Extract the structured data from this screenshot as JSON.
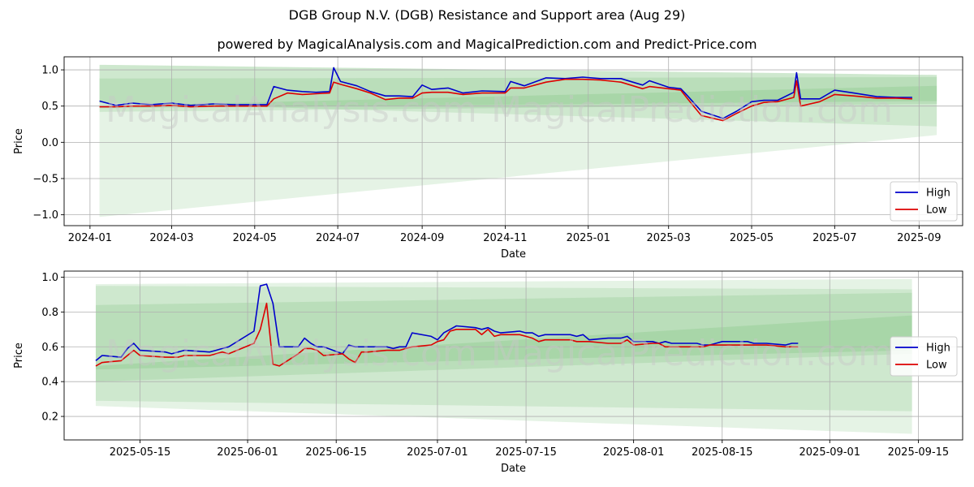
{
  "header": {
    "title": "DGB Group N.V. (DGB) Resistance and Support area (Aug 29)",
    "subtitle": "powered by MagicalAnalysis.com and MagicalPrediction.com and Predict-Price.com"
  },
  "watermarks": [
    "MagicalAnalysis.com",
    "MagicalPrediction.com"
  ],
  "colors": {
    "high": "#0000cc",
    "low": "#dd0000",
    "band": "#2ca02c"
  },
  "chart_data": [
    {
      "type": "line",
      "xlabel": "Date",
      "ylabel": "Price",
      "xlim": [
        "2023-12-13",
        "2025-10-03"
      ],
      "ylim": [
        -1.15,
        1.18
      ],
      "x_ticks": [
        "2024-01-01",
        "2024-03-01",
        "2024-05-01",
        "2024-07-01",
        "2024-09-01",
        "2024-11-01",
        "2025-01-01",
        "2025-03-01",
        "2025-05-01",
        "2025-07-01",
        "2025-09-01"
      ],
      "x_tick_labels": [
        "2024-01",
        "2024-03",
        "2024-05",
        "2024-07",
        "2024-09",
        "2024-11",
        "2025-01",
        "2025-03",
        "2025-05",
        "2025-07",
        "2025-09"
      ],
      "y_ticks": [
        -1.0,
        -0.5,
        0.0,
        0.5,
        1.0
      ],
      "y_tick_labels": [
        "−1.0",
        "−0.5",
        "0.0",
        "0.5",
        "1.0"
      ],
      "grid": true,
      "legend": "bottom-right",
      "bands": [
        {
          "x": [
            "2024-01-08",
            "2025-09-14"
          ],
          "upper": [
            1.07,
            0.93
          ],
          "lower": [
            -1.03,
            0.1
          ]
        },
        {
          "x": [
            "2024-01-08",
            "2025-09-14"
          ],
          "upper": [
            1.07,
            0.93
          ],
          "lower": [
            0.55,
            0.22
          ]
        },
        {
          "x": [
            "2024-01-08",
            "2025-09-14"
          ],
          "upper": [
            0.88,
            0.9
          ],
          "lower": [
            0.42,
            0.53
          ]
        },
        {
          "x": [
            "2024-01-08",
            "2025-09-14"
          ],
          "upper": [
            0.5,
            0.78
          ],
          "lower": [
            0.47,
            0.57
          ]
        }
      ],
      "series": [
        {
          "name": "High",
          "x": [
            "2024-01-08",
            "2024-01-20",
            "2024-02-01",
            "2024-02-15",
            "2024-03-01",
            "2024-03-15",
            "2024-04-01",
            "2024-04-15",
            "2024-05-01",
            "2024-05-10",
            "2024-05-15",
            "2024-05-25",
            "2024-06-05",
            "2024-06-15",
            "2024-06-25",
            "2024-06-28",
            "2024-07-03",
            "2024-07-15",
            "2024-07-25",
            "2024-08-05",
            "2024-08-15",
            "2024-08-25",
            "2024-09-01",
            "2024-09-08",
            "2024-09-20",
            "2024-10-01",
            "2024-10-15",
            "2024-11-01",
            "2024-11-05",
            "2024-11-15",
            "2024-12-01",
            "2024-12-15",
            "2024-12-28",
            "2025-01-10",
            "2025-01-25",
            "2025-02-10",
            "2025-02-15",
            "2025-03-01",
            "2025-03-10",
            "2025-03-15",
            "2025-03-25",
            "2025-04-10",
            "2025-04-20",
            "2025-05-01",
            "2025-05-10",
            "2025-05-20",
            "2025-06-01",
            "2025-06-03",
            "2025-06-06",
            "2025-06-20",
            "2025-07-01",
            "2025-07-15",
            "2025-08-01",
            "2025-08-15",
            "2025-08-27"
          ],
          "values": [
            0.57,
            0.51,
            0.54,
            0.52,
            0.54,
            0.51,
            0.53,
            0.52,
            0.52,
            0.52,
            0.77,
            0.72,
            0.7,
            0.69,
            0.7,
            1.03,
            0.84,
            0.78,
            0.7,
            0.64,
            0.64,
            0.63,
            0.79,
            0.73,
            0.75,
            0.68,
            0.71,
            0.7,
            0.84,
            0.78,
            0.89,
            0.88,
            0.9,
            0.88,
            0.88,
            0.79,
            0.85,
            0.76,
            0.74,
            0.64,
            0.43,
            0.33,
            0.43,
            0.56,
            0.58,
            0.58,
            0.69,
            0.96,
            0.6,
            0.6,
            0.72,
            0.68,
            0.63,
            0.62,
            0.62
          ]
        },
        {
          "name": "Low",
          "x": [
            "2024-01-08",
            "2024-01-20",
            "2024-02-01",
            "2024-02-15",
            "2024-03-01",
            "2024-03-15",
            "2024-04-01",
            "2024-04-15",
            "2024-05-01",
            "2024-05-10",
            "2024-05-15",
            "2024-05-25",
            "2024-06-05",
            "2024-06-15",
            "2024-06-25",
            "2024-06-28",
            "2024-07-03",
            "2024-07-15",
            "2024-07-25",
            "2024-08-05",
            "2024-08-15",
            "2024-08-25",
            "2024-09-01",
            "2024-09-08",
            "2024-09-20",
            "2024-10-01",
            "2024-10-15",
            "2024-11-01",
            "2024-11-05",
            "2024-11-15",
            "2024-12-01",
            "2024-12-15",
            "2024-12-28",
            "2025-01-10",
            "2025-01-25",
            "2025-02-10",
            "2025-02-15",
            "2025-03-01",
            "2025-03-10",
            "2025-03-15",
            "2025-03-25",
            "2025-04-10",
            "2025-04-20",
            "2025-05-01",
            "2025-05-10",
            "2025-05-20",
            "2025-06-01",
            "2025-06-03",
            "2025-06-06",
            "2025-06-20",
            "2025-07-01",
            "2025-07-15",
            "2025-08-01",
            "2025-08-15",
            "2025-08-27"
          ],
          "values": [
            0.49,
            0.49,
            0.5,
            0.5,
            0.51,
            0.49,
            0.5,
            0.5,
            0.5,
            0.5,
            0.6,
            0.68,
            0.66,
            0.67,
            0.68,
            0.83,
            0.8,
            0.74,
            0.68,
            0.59,
            0.61,
            0.61,
            0.68,
            0.69,
            0.69,
            0.66,
            0.68,
            0.68,
            0.75,
            0.75,
            0.83,
            0.87,
            0.87,
            0.86,
            0.83,
            0.74,
            0.77,
            0.74,
            0.72,
            0.6,
            0.37,
            0.3,
            0.4,
            0.5,
            0.55,
            0.56,
            0.62,
            0.85,
            0.5,
            0.56,
            0.66,
            0.64,
            0.61,
            0.61,
            0.6
          ]
        }
      ]
    },
    {
      "type": "line",
      "xlabel": "Date",
      "ylabel": "Price",
      "xlim": [
        "2025-05-03",
        "2025-09-22"
      ],
      "ylim": [
        0.065,
        1.035
      ],
      "x_ticks": [
        "2025-05-15",
        "2025-06-01",
        "2025-06-15",
        "2025-07-01",
        "2025-07-15",
        "2025-08-01",
        "2025-08-15",
        "2025-09-01",
        "2025-09-15"
      ],
      "x_tick_labels": [
        "2025-05-15",
        "2025-06-01",
        "2025-06-15",
        "2025-07-01",
        "2025-07-15",
        "2025-08-01",
        "2025-08-15",
        "2025-09-01",
        "2025-09-15"
      ],
      "y_ticks": [
        0.2,
        0.4,
        0.6,
        0.8,
        1.0
      ],
      "y_tick_labels": [
        "0.2",
        "0.4",
        "0.6",
        "0.8",
        "1.0"
      ],
      "grid": true,
      "legend": "center-right",
      "bands": [
        {
          "x": [
            "2025-05-08",
            "2025-09-14"
          ],
          "upper": [
            0.96,
            0.99
          ],
          "lower": [
            0.26,
            0.1
          ]
        },
        {
          "x": [
            "2025-05-08",
            "2025-09-14"
          ],
          "upper": [
            0.95,
            0.93
          ],
          "lower": [
            0.29,
            0.23
          ]
        },
        {
          "x": [
            "2025-05-08",
            "2025-09-14"
          ],
          "upper": [
            0.84,
            0.91
          ],
          "lower": [
            0.4,
            0.56
          ]
        },
        {
          "x": [
            "2025-05-08",
            "2025-09-14"
          ],
          "upper": [
            0.49,
            0.78
          ],
          "lower": [
            0.47,
            0.58
          ]
        }
      ],
      "series": [
        {
          "name": "High",
          "x": [
            "2025-05-08",
            "2025-05-09",
            "2025-05-12",
            "2025-05-13",
            "2025-05-14",
            "2025-05-15",
            "2025-05-19",
            "2025-05-20",
            "2025-05-21",
            "2025-05-22",
            "2025-05-26",
            "2025-05-27",
            "2025-05-28",
            "2025-05-29",
            "2025-06-02",
            "2025-06-03",
            "2025-06-04",
            "2025-06-05",
            "2025-06-06",
            "2025-06-09",
            "2025-06-10",
            "2025-06-11",
            "2025-06-12",
            "2025-06-13",
            "2025-06-16",
            "2025-06-17",
            "2025-06-18",
            "2025-06-19",
            "2025-06-20",
            "2025-06-23",
            "2025-06-24",
            "2025-06-25",
            "2025-06-26",
            "2025-06-27",
            "2025-06-30",
            "2025-07-01",
            "2025-07-02",
            "2025-07-03",
            "2025-07-04",
            "2025-07-07",
            "2025-07-08",
            "2025-07-09",
            "2025-07-10",
            "2025-07-11",
            "2025-07-14",
            "2025-07-15",
            "2025-07-16",
            "2025-07-17",
            "2025-07-18",
            "2025-07-21",
            "2025-07-22",
            "2025-07-23",
            "2025-07-24",
            "2025-07-25",
            "2025-07-28",
            "2025-07-29",
            "2025-07-30",
            "2025-07-31",
            "2025-08-01",
            "2025-08-04",
            "2025-08-05",
            "2025-08-06",
            "2025-08-07",
            "2025-08-08",
            "2025-08-11",
            "2025-08-12",
            "2025-08-13",
            "2025-08-14",
            "2025-08-15",
            "2025-08-18",
            "2025-08-19",
            "2025-08-20",
            "2025-08-21",
            "2025-08-22",
            "2025-08-25",
            "2025-08-26",
            "2025-08-27"
          ],
          "values": [
            0.52,
            0.55,
            0.54,
            0.59,
            0.62,
            0.58,
            0.57,
            0.56,
            0.57,
            0.58,
            0.57,
            0.58,
            0.59,
            0.6,
            0.69,
            0.95,
            0.96,
            0.85,
            0.6,
            0.6,
            0.65,
            0.62,
            0.6,
            0.6,
            0.56,
            0.61,
            0.6,
            0.6,
            0.6,
            0.6,
            0.59,
            0.6,
            0.6,
            0.68,
            0.66,
            0.64,
            0.68,
            0.7,
            0.72,
            0.71,
            0.7,
            0.71,
            0.69,
            0.68,
            0.69,
            0.68,
            0.68,
            0.66,
            0.67,
            0.67,
            0.67,
            0.66,
            0.67,
            0.64,
            0.65,
            0.65,
            0.65,
            0.66,
            0.63,
            0.63,
            0.62,
            0.63,
            0.62,
            0.62,
            0.62,
            0.61,
            0.61,
            0.62,
            0.63,
            0.63,
            0.63,
            0.62,
            0.62,
            0.62,
            0.61,
            0.62,
            0.62
          ]
        },
        {
          "name": "Low",
          "x": [
            "2025-05-08",
            "2025-05-09",
            "2025-05-12",
            "2025-05-13",
            "2025-05-14",
            "2025-05-15",
            "2025-05-19",
            "2025-05-20",
            "2025-05-21",
            "2025-05-22",
            "2025-05-26",
            "2025-05-27",
            "2025-05-28",
            "2025-05-29",
            "2025-06-02",
            "2025-06-03",
            "2025-06-04",
            "2025-06-05",
            "2025-06-06",
            "2025-06-09",
            "2025-06-10",
            "2025-06-11",
            "2025-06-12",
            "2025-06-13",
            "2025-06-16",
            "2025-06-17",
            "2025-06-18",
            "2025-06-19",
            "2025-06-20",
            "2025-06-23",
            "2025-06-24",
            "2025-06-25",
            "2025-06-26",
            "2025-06-27",
            "2025-06-30",
            "2025-07-01",
            "2025-07-02",
            "2025-07-03",
            "2025-07-04",
            "2025-07-07",
            "2025-07-08",
            "2025-07-09",
            "2025-07-10",
            "2025-07-11",
            "2025-07-14",
            "2025-07-15",
            "2025-07-16",
            "2025-07-17",
            "2025-07-18",
            "2025-07-21",
            "2025-07-22",
            "2025-07-23",
            "2025-07-24",
            "2025-07-25",
            "2025-07-28",
            "2025-07-29",
            "2025-07-30",
            "2025-07-31",
            "2025-08-01",
            "2025-08-04",
            "2025-08-05",
            "2025-08-06",
            "2025-08-07",
            "2025-08-08",
            "2025-08-11",
            "2025-08-12",
            "2025-08-13",
            "2025-08-14",
            "2025-08-15",
            "2025-08-18",
            "2025-08-19",
            "2025-08-20",
            "2025-08-21",
            "2025-08-22",
            "2025-08-25",
            "2025-08-26",
            "2025-08-27"
          ],
          "values": [
            0.49,
            0.51,
            0.52,
            0.55,
            0.58,
            0.55,
            0.54,
            0.54,
            0.54,
            0.55,
            0.55,
            0.56,
            0.57,
            0.56,
            0.62,
            0.7,
            0.85,
            0.5,
            0.49,
            0.56,
            0.59,
            0.59,
            0.58,
            0.55,
            0.56,
            0.53,
            0.51,
            0.57,
            0.57,
            0.58,
            0.58,
            0.58,
            0.59,
            0.6,
            0.61,
            0.63,
            0.64,
            0.69,
            0.7,
            0.7,
            0.67,
            0.7,
            0.66,
            0.67,
            0.67,
            0.66,
            0.65,
            0.63,
            0.64,
            0.64,
            0.64,
            0.63,
            0.63,
            0.63,
            0.62,
            0.62,
            0.62,
            0.64,
            0.61,
            0.62,
            0.62,
            0.6,
            0.6,
            0.6,
            0.6,
            0.6,
            0.61,
            0.61,
            0.61,
            0.61,
            0.61,
            0.61,
            0.61,
            0.61,
            0.6,
            0.6,
            0.6
          ]
        }
      ]
    }
  ]
}
